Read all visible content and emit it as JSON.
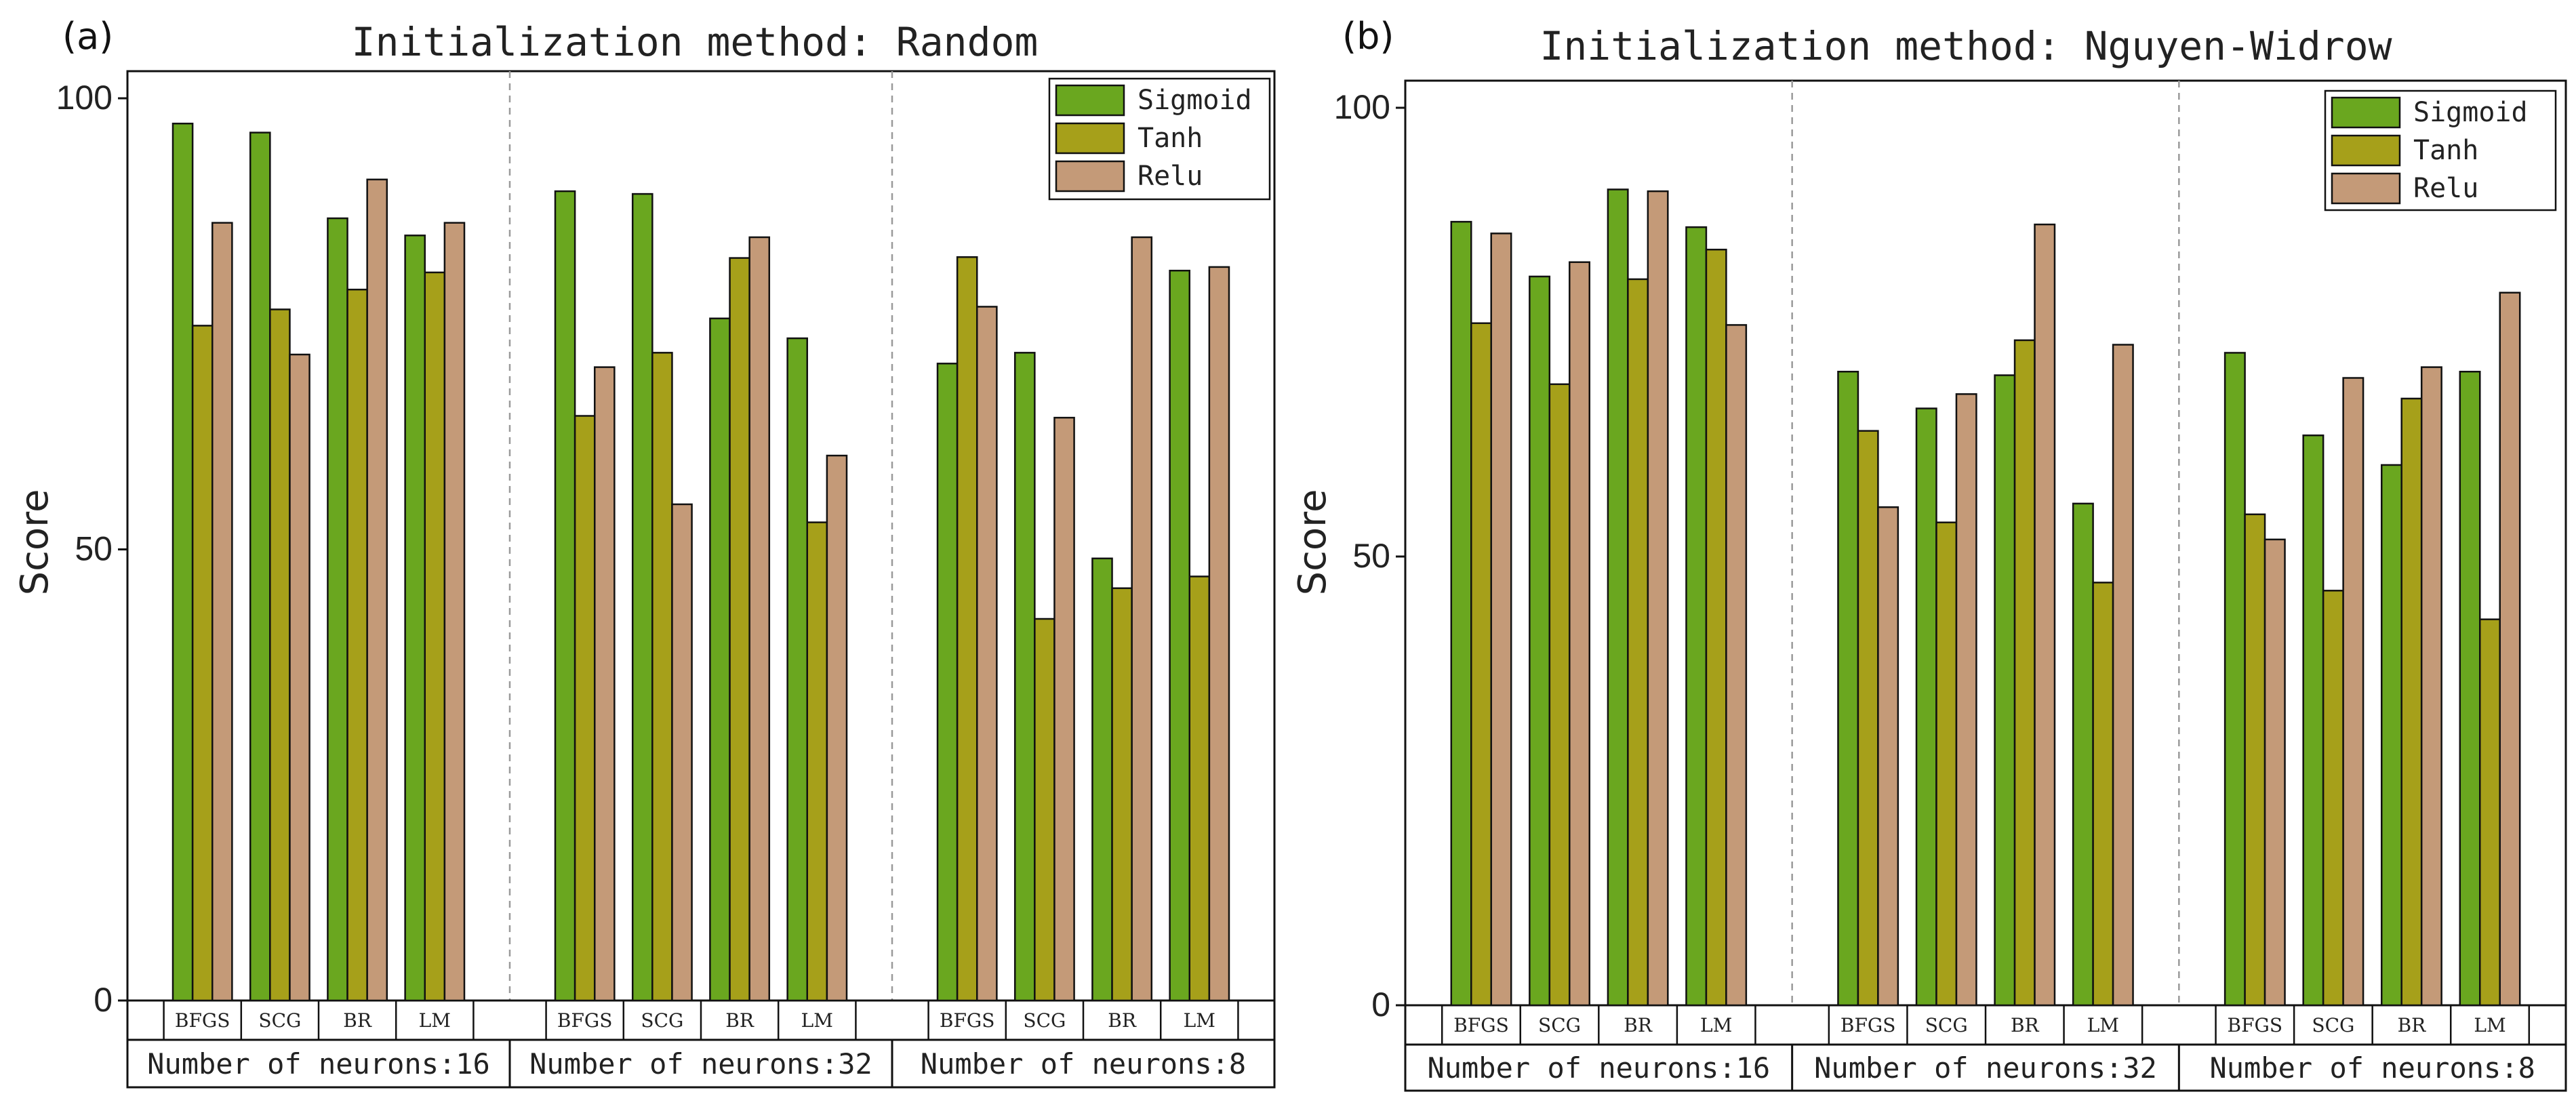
{
  "colors": {
    "Sigmoid": "#6aa71f",
    "Tanh": "#a6a01a",
    "Relu": "#c49a78",
    "axis": "#111111",
    "divider": "#9a9a9a"
  },
  "chart_data": [
    {
      "type": "bar",
      "panel": "(a)",
      "title": "Initialization method: Random",
      "ylabel": "Score",
      "ylim": [
        0,
        100
      ],
      "yticks": [
        0,
        50,
        100
      ],
      "legend": [
        "Sigmoid",
        "Tanh",
        "Relu"
      ],
      "legend_position": "top-right",
      "groups": [
        {
          "label": "Number of neurons:16",
          "categories": [
            "BFGS",
            "SCG",
            "BR",
            "LM"
          ],
          "series": [
            {
              "name": "Sigmoid",
              "values": [
                97.2,
                96.2,
                86.7,
                84.8
              ]
            },
            {
              "name": "Tanh",
              "values": [
                74.8,
                76.6,
                78.8,
                80.7
              ]
            },
            {
              "name": "Relu",
              "values": [
                86.2,
                71.6,
                91.0,
                86.2
              ]
            }
          ]
        },
        {
          "label": "Number of neurons:32",
          "categories": [
            "BFGS",
            "SCG",
            "BR",
            "LM"
          ],
          "series": [
            {
              "name": "Sigmoid",
              "values": [
                89.7,
                89.4,
                75.6,
                73.4
              ]
            },
            {
              "name": "Tanh",
              "values": [
                64.8,
                71.8,
                82.3,
                53.0
              ]
            },
            {
              "name": "Relu",
              "values": [
                70.2,
                55.0,
                84.6,
                60.4
              ]
            }
          ]
        },
        {
          "label": "Number of neurons:8",
          "categories": [
            "BFGS",
            "SCG",
            "BR",
            "LM"
          ],
          "series": [
            {
              "name": "Sigmoid",
              "values": [
                70.6,
                71.8,
                49.0,
                80.9
              ]
            },
            {
              "name": "Tanh",
              "values": [
                82.4,
                42.3,
                45.7,
                47.0
              ]
            },
            {
              "name": "Relu",
              "values": [
                76.9,
                64.6,
                84.6,
                81.3
              ]
            }
          ]
        }
      ]
    },
    {
      "type": "bar",
      "panel": "(b)",
      "title": "Initialization method: Nguyen-Widrow",
      "ylabel": "Score",
      "ylim": [
        0,
        100
      ],
      "yticks": [
        0,
        50,
        100
      ],
      "legend": [
        "Sigmoid",
        "Tanh",
        "Relu"
      ],
      "legend_position": "top-right",
      "groups": [
        {
          "label": "Number of neurons:16",
          "categories": [
            "BFGS",
            "SCG",
            "BR",
            "LM"
          ],
          "series": [
            {
              "name": "Sigmoid",
              "values": [
                87.3,
                81.2,
                90.9,
                86.7
              ]
            },
            {
              "name": "Tanh",
              "values": [
                76.0,
                69.2,
                80.9,
                84.2
              ]
            },
            {
              "name": "Relu",
              "values": [
                86.0,
                82.8,
                90.7,
                75.8
              ]
            }
          ]
        },
        {
          "label": "Number of neurons:32",
          "categories": [
            "BFGS",
            "SCG",
            "BR",
            "LM"
          ],
          "series": [
            {
              "name": "Sigmoid",
              "values": [
                70.6,
                66.5,
                70.2,
                55.9
              ]
            },
            {
              "name": "Tanh",
              "values": [
                64.0,
                53.8,
                74.1,
                47.1
              ]
            },
            {
              "name": "Relu",
              "values": [
                55.5,
                68.1,
                87.0,
                73.6
              ]
            }
          ]
        },
        {
          "label": "Number of neurons:8",
          "categories": [
            "BFGS",
            "SCG",
            "BR",
            "LM"
          ],
          "series": [
            {
              "name": "Sigmoid",
              "values": [
                72.7,
                63.5,
                60.2,
                70.6
              ]
            },
            {
              "name": "Tanh",
              "values": [
                54.7,
                46.2,
                67.6,
                43.0
              ]
            },
            {
              "name": "Relu",
              "values": [
                51.9,
                69.9,
                71.1,
                79.4
              ]
            }
          ]
        }
      ]
    }
  ]
}
